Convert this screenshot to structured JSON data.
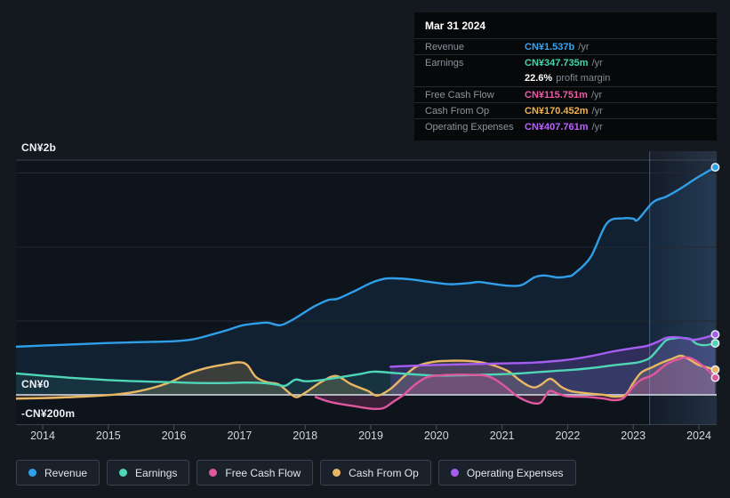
{
  "tooltip": {
    "date": "Mar 31 2024",
    "rows": [
      {
        "label": "Revenue",
        "value": "CN¥1.537b",
        "unit": "/yr",
        "color": "#38a5f2"
      },
      {
        "label": "Earnings",
        "value": "CN¥347.735m",
        "unit": "/yr",
        "color": "#46d4ae"
      },
      {
        "label": "",
        "value": "22.6%",
        "unit": "profit margin",
        "color": "#ffffff"
      },
      {
        "label": "Free Cash Flow",
        "value": "CN¥115.751m",
        "unit": "/yr",
        "color": "#ef5aa5"
      },
      {
        "label": "Cash From Op",
        "value": "CN¥170.452m",
        "unit": "/yr",
        "color": "#f0b24f"
      },
      {
        "label": "Operating Expenses",
        "value": "CN¥407.761m",
        "unit": "/yr",
        "color": "#bb63ff"
      }
    ]
  },
  "legend": {
    "items": [
      {
        "label": "Revenue",
        "color": "#2f9fe9"
      },
      {
        "label": "Earnings",
        "color": "#4fd6b6"
      },
      {
        "label": "Free Cash Flow",
        "color": "#e0579f"
      },
      {
        "label": "Cash From Op",
        "color": "#e9b664"
      },
      {
        "label": "Operating Expenses",
        "color": "#a55df2"
      }
    ]
  },
  "chart_data": {
    "type": "area",
    "unit": "CN¥ millions per year",
    "title": "Past earnings and revenue history to Mar 31 2024",
    "x_ticks": [
      2014,
      2015,
      2016,
      2017,
      2018,
      2019,
      2020,
      2021,
      2022,
      2023,
      2024
    ],
    "xlim": [
      2013.59,
      2024.45
    ],
    "ylim_m": [
      -200,
      2000
    ],
    "grid": true,
    "legend_position": "bottom",
    "highlight_from_year": 2023.25,
    "y_axis_labels": [
      {
        "text": "CN¥2b"
      },
      {
        "text": "CN¥0"
      },
      {
        "text": "-CN¥200m"
      }
    ],
    "series": [
      {
        "name": "Revenue",
        "color": "#2f9fe9",
        "fill": "rgba(47,159,233,0.10)",
        "points": [
          [
            2013.59,
            325
          ],
          [
            2014,
            333
          ],
          [
            2014.5,
            341
          ],
          [
            2015,
            350
          ],
          [
            2015.5,
            356
          ],
          [
            2016,
            362
          ],
          [
            2016.3,
            376
          ],
          [
            2016.6,
            410
          ],
          [
            2016.85,
            442
          ],
          [
            2017.05,
            470
          ],
          [
            2017.3,
            484
          ],
          [
            2017.44,
            487
          ],
          [
            2017.62,
            470
          ],
          [
            2017.8,
            505
          ],
          [
            2018,
            560
          ],
          [
            2018.15,
            600
          ],
          [
            2018.35,
            640
          ],
          [
            2018.5,
            650
          ],
          [
            2018.75,
            700
          ],
          [
            2019,
            755
          ],
          [
            2019.2,
            783
          ],
          [
            2019.35,
            787
          ],
          [
            2019.6,
            780
          ],
          [
            2019.9,
            762
          ],
          [
            2020.2,
            747
          ],
          [
            2020.5,
            755
          ],
          [
            2020.65,
            762
          ],
          [
            2020.85,
            750
          ],
          [
            2021.1,
            737
          ],
          [
            2021.3,
            742
          ],
          [
            2021.5,
            795
          ],
          [
            2021.65,
            806
          ],
          [
            2021.85,
            793
          ],
          [
            2022,
            800
          ],
          [
            2022.1,
            818
          ],
          [
            2022.35,
            930
          ],
          [
            2022.6,
            1160
          ],
          [
            2022.85,
            1192
          ],
          [
            2023,
            1190
          ],
          [
            2023.07,
            1183
          ],
          [
            2023.3,
            1300
          ],
          [
            2023.5,
            1338
          ],
          [
            2023.7,
            1388
          ],
          [
            2023.95,
            1460
          ],
          [
            2024.1,
            1500
          ],
          [
            2024.25,
            1537
          ]
        ]
      },
      {
        "name": "Cash From Op",
        "color": "#e9b664",
        "fill": "rgba(233,182,100,0.20)",
        "points": [
          [
            2013.59,
            -26
          ],
          [
            2014,
            -22
          ],
          [
            2014.6,
            -12
          ],
          [
            2015.1,
            2
          ],
          [
            2015.5,
            28
          ],
          [
            2015.9,
            78
          ],
          [
            2016.2,
            140
          ],
          [
            2016.5,
            182
          ],
          [
            2016.8,
            207
          ],
          [
            2017,
            220
          ],
          [
            2017.12,
            200
          ],
          [
            2017.25,
            120
          ],
          [
            2017.42,
            85
          ],
          [
            2017.6,
            70
          ],
          [
            2017.78,
            5
          ],
          [
            2017.88,
            -15
          ],
          [
            2018.02,
            20
          ],
          [
            2018.25,
            88
          ],
          [
            2018.47,
            128
          ],
          [
            2018.7,
            72
          ],
          [
            2018.95,
            28
          ],
          [
            2019.1,
            -5
          ],
          [
            2019.3,
            40
          ],
          [
            2019.5,
            122
          ],
          [
            2019.7,
            192
          ],
          [
            2019.95,
            223
          ],
          [
            2020.2,
            230
          ],
          [
            2020.5,
            229
          ],
          [
            2020.7,
            218
          ],
          [
            2020.9,
            195
          ],
          [
            2021.1,
            158
          ],
          [
            2021.25,
            105
          ],
          [
            2021.4,
            62
          ],
          [
            2021.5,
            50
          ],
          [
            2021.6,
            70
          ],
          [
            2021.74,
            108
          ],
          [
            2021.9,
            55
          ],
          [
            2022.05,
            25
          ],
          [
            2022.3,
            10
          ],
          [
            2022.55,
            0
          ],
          [
            2022.7,
            -12
          ],
          [
            2022.88,
            0
          ],
          [
            2023,
            80
          ],
          [
            2023.12,
            150
          ],
          [
            2023.28,
            185
          ],
          [
            2023.45,
            220
          ],
          [
            2023.6,
            245
          ],
          [
            2023.73,
            264
          ],
          [
            2023.87,
            235
          ],
          [
            2023.98,
            205
          ],
          [
            2024.1,
            188
          ],
          [
            2024.25,
            170
          ]
        ]
      },
      {
        "name": "Earnings",
        "color": "#4fd6b6",
        "fill": "rgba(79,214,182,0.10)",
        "points": [
          [
            2013.59,
            145
          ],
          [
            2014,
            130
          ],
          [
            2014.5,
            113
          ],
          [
            2015,
            100
          ],
          [
            2015.5,
            91
          ],
          [
            2016,
            85
          ],
          [
            2016.4,
            80
          ],
          [
            2016.8,
            80
          ],
          [
            2017.1,
            83
          ],
          [
            2017.35,
            80
          ],
          [
            2017.55,
            70
          ],
          [
            2017.7,
            62
          ],
          [
            2017.85,
            103
          ],
          [
            2018,
            92
          ],
          [
            2018.25,
            100
          ],
          [
            2018.55,
            120
          ],
          [
            2018.85,
            142
          ],
          [
            2019.05,
            157
          ],
          [
            2019.35,
            148
          ],
          [
            2019.7,
            137
          ],
          [
            2020,
            130
          ],
          [
            2020.4,
            132
          ],
          [
            2020.8,
            137
          ],
          [
            2021.2,
            143
          ],
          [
            2021.5,
            152
          ],
          [
            2021.8,
            161
          ],
          [
            2022.1,
            170
          ],
          [
            2022.4,
            183
          ],
          [
            2022.7,
            200
          ],
          [
            2022.95,
            212
          ],
          [
            2023.1,
            222
          ],
          [
            2023.25,
            248
          ],
          [
            2023.38,
            310
          ],
          [
            2023.5,
            368
          ],
          [
            2023.62,
            382
          ],
          [
            2023.75,
            385
          ],
          [
            2023.87,
            376
          ],
          [
            2023.97,
            344
          ],
          [
            2024.1,
            336
          ],
          [
            2024.25,
            348
          ]
        ]
      },
      {
        "name": "Operating Expenses",
        "color": "#a55df2",
        "fill": "rgba(165,93,242,0.22)",
        "points": [
          [
            2019.3,
            190
          ],
          [
            2019.6,
            196
          ],
          [
            2020,
            202
          ],
          [
            2020.5,
            207
          ],
          [
            2021,
            212
          ],
          [
            2021.5,
            218
          ],
          [
            2021.9,
            232
          ],
          [
            2022.15,
            246
          ],
          [
            2022.45,
            270
          ],
          [
            2022.7,
            294
          ],
          [
            2023,
            316
          ],
          [
            2023.2,
            330
          ],
          [
            2023.38,
            360
          ],
          [
            2023.5,
            385
          ],
          [
            2023.65,
            390
          ],
          [
            2023.8,
            380
          ],
          [
            2023.93,
            372
          ],
          [
            2024.08,
            385
          ],
          [
            2024.25,
            408
          ]
        ]
      },
      {
        "name": "Free Cash Flow",
        "color": "#e0579f",
        "fill": "rgba(224,87,159,0.20)",
        "points": [
          [
            2018.16,
            -15
          ],
          [
            2018.4,
            -50
          ],
          [
            2018.8,
            -80
          ],
          [
            2019.05,
            -95
          ],
          [
            2019.2,
            -88
          ],
          [
            2019.35,
            -45
          ],
          [
            2019.5,
            0
          ],
          [
            2019.65,
            60
          ],
          [
            2019.85,
            118
          ],
          [
            2020.1,
            133
          ],
          [
            2020.5,
            136
          ],
          [
            2020.75,
            130
          ],
          [
            2020.9,
            102
          ],
          [
            2021.05,
            56
          ],
          [
            2021.2,
            0
          ],
          [
            2021.35,
            -38
          ],
          [
            2021.5,
            -58
          ],
          [
            2021.6,
            -48
          ],
          [
            2021.72,
            25
          ],
          [
            2021.85,
            8
          ],
          [
            2022,
            -10
          ],
          [
            2022.3,
            -14
          ],
          [
            2022.55,
            -25
          ],
          [
            2022.7,
            -36
          ],
          [
            2022.85,
            -22
          ],
          [
            2023,
            55
          ],
          [
            2023.12,
            102
          ],
          [
            2023.3,
            135
          ],
          [
            2023.5,
            205
          ],
          [
            2023.72,
            245
          ],
          [
            2023.86,
            250
          ],
          [
            2024.05,
            200
          ],
          [
            2024.25,
            116
          ]
        ]
      }
    ]
  }
}
